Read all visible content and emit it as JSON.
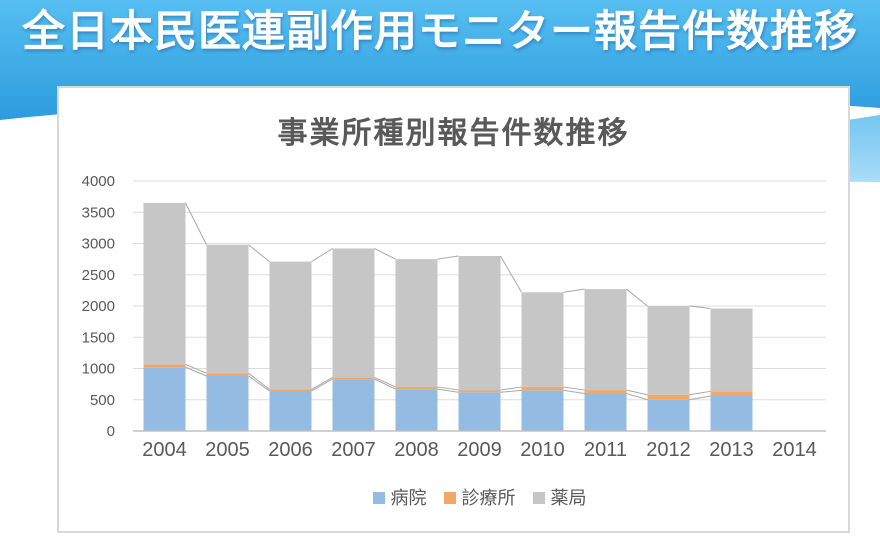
{
  "page": {
    "header_title": "全日本民医連副作用モニター報告件数推移"
  },
  "colors": {
    "header_gradient_top": "#56BEF1",
    "header_gradient_bottom": "#2D9CDE",
    "wave_band_top": "#74C6F1",
    "wave_band_bottom": "#BCE4FA",
    "panel_border": "#D8D8D8",
    "text_gray": "#595959",
    "gridline": "#DDDDDD",
    "axis_line": "#C2C2C2",
    "series_line": "#A8A8A8"
  },
  "chart_data": {
    "type": "bar",
    "stacked": true,
    "title": "事業所種別報告件数推移",
    "categories": [
      "2004",
      "2005",
      "2006",
      "2007",
      "2008",
      "2009",
      "2010",
      "2011",
      "2012",
      "2013",
      "2014"
    ],
    "series": [
      {
        "name": "病院",
        "color": "#94BCE2",
        "values": [
          1020,
          880,
          640,
          830,
          670,
          620,
          650,
          600,
          500,
          560,
          null
        ]
      },
      {
        "name": "診療所",
        "color": "#F0A869",
        "values": [
          45,
          45,
          25,
          25,
          35,
          35,
          55,
          55,
          80,
          75,
          null
        ]
      },
      {
        "name": "薬局",
        "color": "#C6C6C6",
        "values": [
          2585,
          2055,
          2045,
          2065,
          2045,
          2145,
          1515,
          1615,
          1420,
          1325,
          null
        ]
      }
    ],
    "totals": [
      3650,
      2980,
      2710,
      2920,
      2750,
      2800,
      2220,
      2270,
      2000,
      1960,
      null
    ],
    "ylim": [
      0,
      4000
    ],
    "ytick": 500,
    "ytick_labels": [
      "0",
      "500",
      "1000",
      "1500",
      "2000",
      "2500",
      "3000",
      "3500",
      "4000"
    ],
    "xlabel": "",
    "ylabel": "",
    "grid": true,
    "series_lines": true,
    "legend_position": "bottom"
  }
}
